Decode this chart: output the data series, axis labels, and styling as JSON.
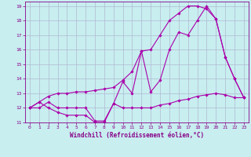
{
  "xlabel": "Windchill (Refroidissement éolien,°C)",
  "bg_color": "#c8eef0",
  "grid_color": "#b0b8d0",
  "line_color": "#aa00aa",
  "xlim": [
    -0.5,
    23.5
  ],
  "ylim": [
    11,
    19.3
  ],
  "yticks": [
    11,
    12,
    13,
    14,
    15,
    16,
    17,
    18,
    19
  ],
  "xticks": [
    0,
    1,
    2,
    3,
    4,
    5,
    6,
    7,
    8,
    9,
    10,
    11,
    12,
    13,
    14,
    15,
    16,
    17,
    18,
    19,
    20,
    21,
    22,
    23
  ],
  "line1_x": [
    0,
    1,
    2,
    3,
    4,
    5,
    6,
    7,
    8,
    9,
    10,
    11,
    12,
    13,
    14,
    15,
    16,
    17,
    18,
    19,
    20,
    21,
    22,
    23
  ],
  "line1_y": [
    12.0,
    12.4,
    12.0,
    11.7,
    11.5,
    11.5,
    11.5,
    11.0,
    11.0,
    12.3,
    12.0,
    12.0,
    12.0,
    12.0,
    12.2,
    12.3,
    12.5,
    12.6,
    12.8,
    12.9,
    13.0,
    12.9,
    12.7,
    12.7
  ],
  "line2_x": [
    0,
    1,
    2,
    3,
    4,
    5,
    6,
    7,
    8,
    9,
    10,
    11,
    12,
    13,
    14,
    15,
    16,
    17,
    18,
    19,
    20,
    21,
    22,
    23
  ],
  "line2_y": [
    12.0,
    12.4,
    12.8,
    13.0,
    13.0,
    13.1,
    13.1,
    13.2,
    13.3,
    13.4,
    13.9,
    14.5,
    15.9,
    16.0,
    17.0,
    18.0,
    18.5,
    19.0,
    19.0,
    18.8,
    18.1,
    15.5,
    14.0,
    12.7
  ],
  "line3_x": [
    0,
    1,
    2,
    3,
    4,
    5,
    6,
    7,
    8,
    9,
    10,
    11,
    12,
    13,
    14,
    15,
    16,
    17,
    18,
    19,
    20,
    21,
    22,
    23
  ],
  "line3_y": [
    12.0,
    12.0,
    12.4,
    12.0,
    12.0,
    12.0,
    12.0,
    11.1,
    11.1,
    12.3,
    13.8,
    13.0,
    15.9,
    13.1,
    13.9,
    16.0,
    17.2,
    17.0,
    18.0,
    19.0,
    18.1,
    15.5,
    14.0,
    12.7
  ]
}
